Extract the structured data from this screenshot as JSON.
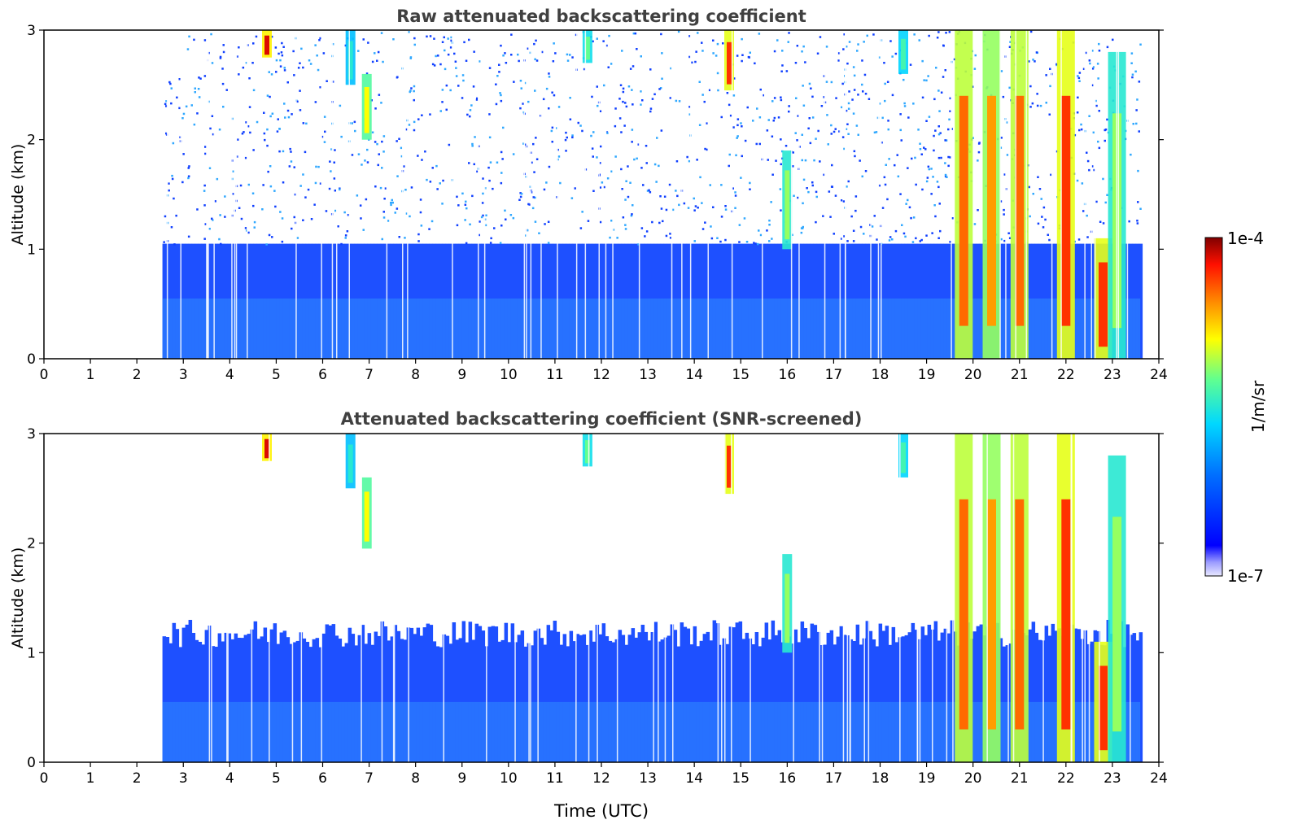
{
  "chart_data": [
    {
      "type": "heatmap",
      "title": "Raw attenuated backscattering coefficient",
      "xlabel": "",
      "ylabel": "Altitude (km)",
      "xlim": [
        0,
        24
      ],
      "ylim": [
        0,
        3
      ],
      "xticks": [
        "0",
        "1",
        "2",
        "3",
        "4",
        "5",
        "6",
        "7",
        "8",
        "9",
        "10",
        "11",
        "12",
        "13",
        "14",
        "15",
        "16",
        "17",
        "18",
        "19",
        "20",
        "21",
        "22",
        "23",
        "24"
      ],
      "yticks": [
        "0",
        "1",
        "2",
        "3"
      ],
      "data_start_time": 2.55,
      "data_end_time": 23.6,
      "noise_floor_km": 1.05,
      "cloud_features": [
        {
          "t": 4.8,
          "base": 2.75,
          "top": 3.0,
          "level": 0.95
        },
        {
          "t": 6.6,
          "base": 2.5,
          "top": 3.0,
          "level": 0.45
        },
        {
          "t": 6.95,
          "base": 2.0,
          "top": 2.6,
          "level": 0.7
        },
        {
          "t": 11.7,
          "base": 2.7,
          "top": 3.0,
          "level": 0.55
        },
        {
          "t": 14.75,
          "base": 2.45,
          "top": 3.0,
          "level": 0.9
        },
        {
          "t": 16.0,
          "base": 1.0,
          "top": 1.9,
          "level": 0.6
        },
        {
          "t": 18.5,
          "base": 2.6,
          "top": 3.0,
          "level": 0.5
        },
        {
          "t": 19.8,
          "base": 0.0,
          "top": 3.0,
          "level": 0.85
        },
        {
          "t": 20.4,
          "base": 0.0,
          "top": 3.0,
          "level": 0.8
        },
        {
          "t": 21.0,
          "base": 0.0,
          "top": 3.0,
          "level": 0.85
        },
        {
          "t": 22.0,
          "base": 0.0,
          "top": 3.0,
          "level": 0.9
        },
        {
          "t": 22.8,
          "base": 0.0,
          "top": 1.1,
          "level": 0.9
        },
        {
          "t": 23.1,
          "base": 0.0,
          "top": 2.8,
          "level": 0.6
        }
      ]
    },
    {
      "type": "heatmap",
      "title": "Attenuated backscattering coefficient (SNR-screened)",
      "xlabel": "Time (UTC)",
      "ylabel": "Altitude (km)",
      "xlim": [
        0,
        24
      ],
      "ylim": [
        0,
        3
      ],
      "xticks": [
        "0",
        "1",
        "2",
        "3",
        "4",
        "5",
        "6",
        "7",
        "8",
        "9",
        "10",
        "11",
        "12",
        "13",
        "14",
        "15",
        "16",
        "17",
        "18",
        "19",
        "20",
        "21",
        "22",
        "23",
        "24"
      ],
      "yticks": [
        "0",
        "1",
        "2",
        "3"
      ],
      "data_start_time": 2.55,
      "data_end_time": 23.6,
      "boundary_layer_top_km": 1.1,
      "cloud_features": [
        {
          "t": 4.8,
          "base": 2.75,
          "top": 3.0,
          "level": 0.95
        },
        {
          "t": 6.6,
          "base": 2.5,
          "top": 3.0,
          "level": 0.45
        },
        {
          "t": 6.95,
          "base": 1.95,
          "top": 2.6,
          "level": 0.7
        },
        {
          "t": 11.7,
          "base": 2.7,
          "top": 3.0,
          "level": 0.55
        },
        {
          "t": 14.75,
          "base": 2.45,
          "top": 3.0,
          "level": 0.9
        },
        {
          "t": 16.0,
          "base": 1.0,
          "top": 1.9,
          "level": 0.6
        },
        {
          "t": 18.5,
          "base": 2.6,
          "top": 3.0,
          "level": 0.5
        },
        {
          "t": 19.8,
          "base": 0.0,
          "top": 3.0,
          "level": 0.85
        },
        {
          "t": 20.4,
          "base": 0.0,
          "top": 3.0,
          "level": 0.8
        },
        {
          "t": 21.0,
          "base": 0.0,
          "top": 3.0,
          "level": 0.85
        },
        {
          "t": 22.0,
          "base": 0.0,
          "top": 3.0,
          "level": 0.9
        },
        {
          "t": 22.8,
          "base": 0.0,
          "top": 1.1,
          "level": 0.9
        },
        {
          "t": 23.1,
          "base": 0.0,
          "top": 2.8,
          "level": 0.6
        }
      ]
    }
  ],
  "colorbar": {
    "label": "1/m/sr",
    "max_label": "1e-4",
    "min_label": "1e-7",
    "colormap": "jet",
    "scale": "log"
  },
  "colors": {
    "background": "#ffffff",
    "axis": "#000000",
    "title": "#404040"
  }
}
